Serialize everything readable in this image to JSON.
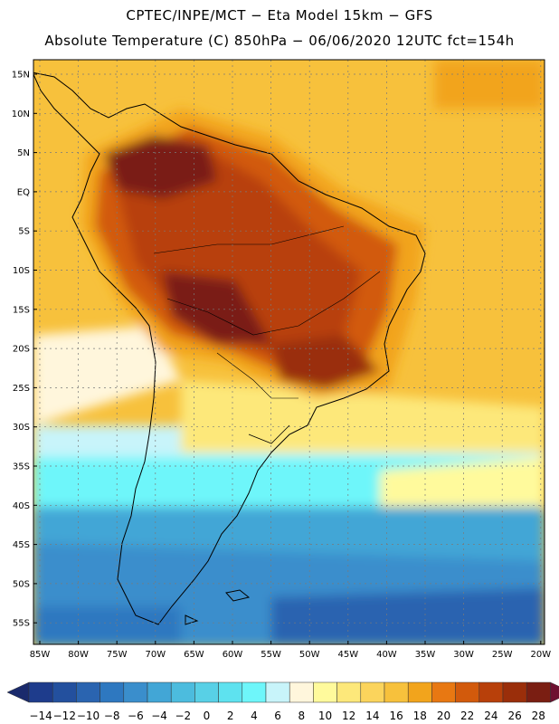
{
  "header": {
    "line1": "CPTEC/INPE/MCT −  Eta Model 15km − GFS",
    "line2": "Absolute Temperature (C) 850hPa − 06/06/2020 12UTC fct=154h"
  },
  "axes": {
    "lat_labels": [
      "15N",
      "10N",
      "5N",
      "EQ",
      "5S",
      "10S",
      "15S",
      "20S",
      "25S",
      "30S",
      "35S",
      "40S",
      "45S",
      "50S",
      "55S"
    ],
    "lon_labels": [
      "85W",
      "80W",
      "75W",
      "70W",
      "65W",
      "60W",
      "55W",
      "50W",
      "45W",
      "40W",
      "35W",
      "30W",
      "25W",
      "20W"
    ]
  },
  "colorbar": {
    "labels": [
      "-14",
      "-12",
      "-10",
      "-8",
      "-6",
      "-4",
      "-2",
      "0",
      "2",
      "4",
      "6",
      "8",
      "10",
      "12",
      "14",
      "16",
      "18",
      "20",
      "22",
      "24",
      "26",
      "28"
    ],
    "colors": [
      "#1e3c8c",
      "#23509e",
      "#2a64b0",
      "#2e78c0",
      "#3a8ecc",
      "#42a6d6",
      "#4cbcde",
      "#58d0e6",
      "#5ee2ef",
      "#6ef6fa",
      "#c8f4fa",
      "#fff6dc",
      "#fffa9c",
      "#fde87a",
      "#fbd45c",
      "#f7c13c",
      "#f2a41c",
      "#e87812",
      "#d25a0c",
      "#b8400a",
      "#9a2e0a",
      "#7a1e12"
    ],
    "low_color": "#1a2a6c",
    "high_color": "#6e1030"
  }
}
